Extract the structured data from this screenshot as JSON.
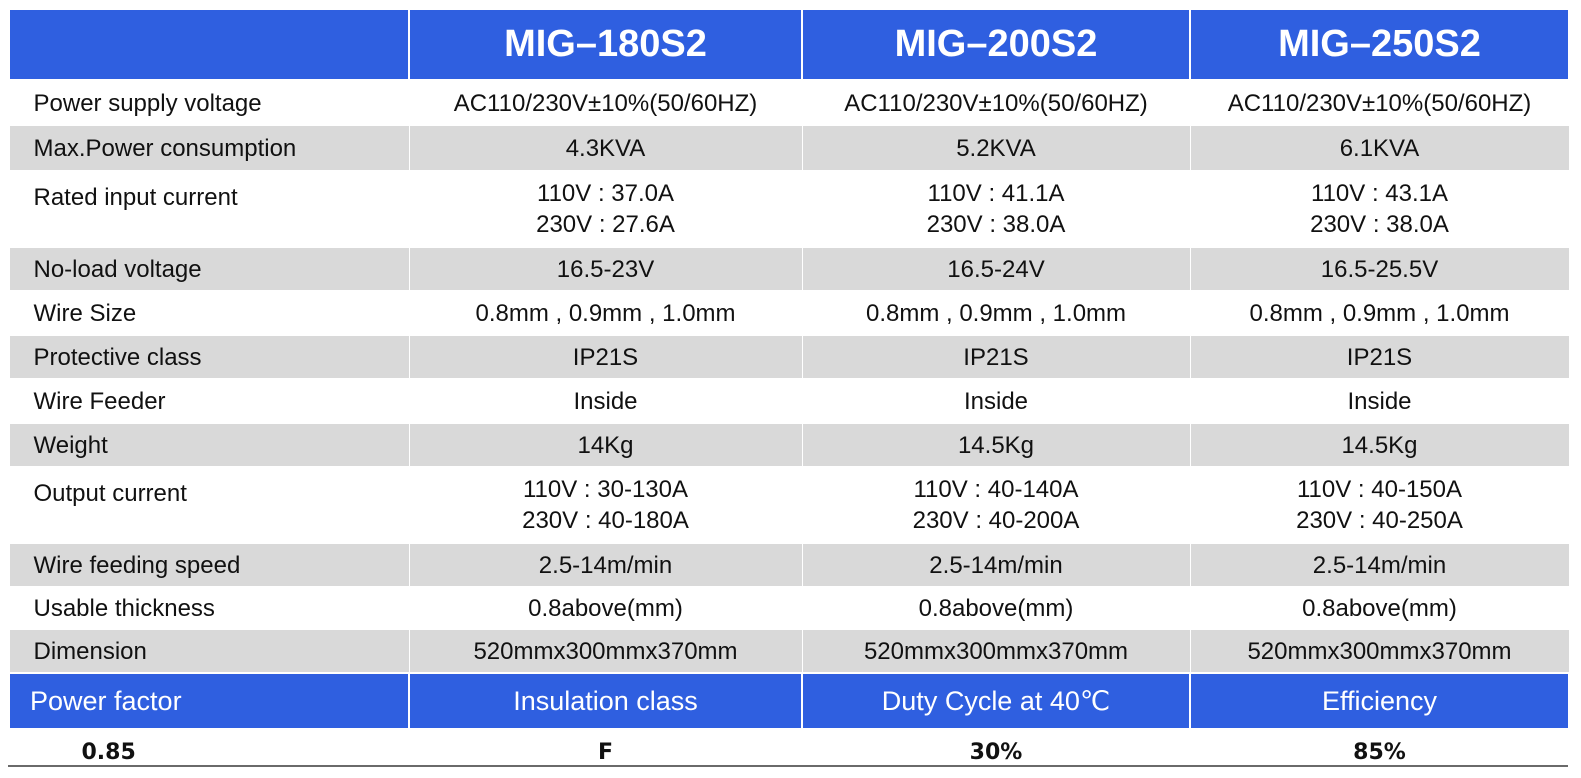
{
  "models": [
    "MIG–180S2",
    "MIG–200S2",
    "MIG–250S2"
  ],
  "rows": [
    {
      "label": "Power supply voltage",
      "values": [
        [
          "AC110/230V±10%(50/60HZ)"
        ],
        [
          "AC110/230V±10%(50/60HZ)"
        ],
        [
          "AC110/230V±10%(50/60HZ)"
        ]
      ]
    },
    {
      "label": "Max.Power consumption",
      "values": [
        [
          "4.3KVA"
        ],
        [
          "5.2KVA"
        ],
        [
          "6.1KVA"
        ]
      ]
    },
    {
      "label": "Rated input current",
      "values": [
        [
          "110V : 37.0A",
          "230V : 27.6A"
        ],
        [
          "110V : 41.1A",
          "230V : 38.0A"
        ],
        [
          "110V : 43.1A",
          "230V : 38.0A"
        ]
      ]
    },
    {
      "label": "No-load voltage",
      "values": [
        [
          "16.5-23V"
        ],
        [
          "16.5-24V"
        ],
        [
          "16.5-25.5V"
        ]
      ]
    },
    {
      "label": "Wire Size",
      "values": [
        [
          "0.8mm , 0.9mm , 1.0mm"
        ],
        [
          "0.8mm , 0.9mm , 1.0mm"
        ],
        [
          "0.8mm , 0.9mm , 1.0mm"
        ]
      ]
    },
    {
      "label": "Protective class",
      "values": [
        [
          "IP21S"
        ],
        [
          "IP21S"
        ],
        [
          "IP21S"
        ]
      ]
    },
    {
      "label": "Wire Feeder",
      "values": [
        [
          "Inside"
        ],
        [
          "Inside"
        ],
        [
          "Inside"
        ]
      ]
    },
    {
      "label": "Weight",
      "values": [
        [
          "14Kg"
        ],
        [
          "14.5Kg"
        ],
        [
          "14.5Kg"
        ]
      ]
    },
    {
      "label": "Output current",
      "values": [
        [
          "110V : 30-130A",
          "230V : 40-180A"
        ],
        [
          "110V : 40-140A",
          "230V : 40-200A"
        ],
        [
          "110V : 40-150A",
          "230V : 40-250A"
        ]
      ]
    },
    {
      "label": "Wire feeding speed",
      "values": [
        [
          "2.5-14m/min"
        ],
        [
          "2.5-14m/min"
        ],
        [
          "2.5-14m/min"
        ]
      ]
    },
    {
      "label": "Usable thickness",
      "values": [
        [
          "0.8above(mm)"
        ],
        [
          "0.8above(mm)"
        ],
        [
          "0.8above(mm)"
        ]
      ]
    },
    {
      "label": "Dimension",
      "values": [
        [
          "520mmx300mmx370mm"
        ],
        [
          "520mmx300mmx370mm"
        ],
        [
          "520mmx300mmx370mm"
        ]
      ]
    }
  ],
  "footer": {
    "headers": [
      "Power factor",
      "Insulation class",
      "Duty Cycle at 40℃",
      "Efficiency"
    ],
    "values": [
      "0.85",
      "F",
      "30%",
      "85%"
    ]
  },
  "colors": {
    "header_blue": "#2f5fe0",
    "stripe_gray": "#d9d9d9"
  }
}
